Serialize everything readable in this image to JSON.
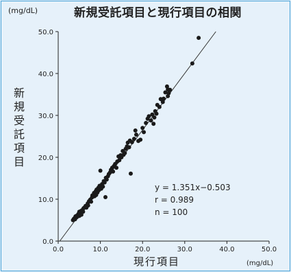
{
  "colors": {
    "background": "#e6f1fa",
    "frame": "#4aa3d8",
    "points": "#1a1a1a",
    "line": "#333333"
  },
  "chart_data": {
    "type": "scatter",
    "title": "新規受託項目と現行項目の相関",
    "xlabel": "現行項目",
    "ylabel": "新規受託項目",
    "x_unit": "(mg/dL)",
    "y_unit": "(mg/dL)",
    "xlim": [
      0,
      50
    ],
    "ylim": [
      0,
      50
    ],
    "x_ticks": [
      "0.0",
      "10.0",
      "20.0",
      "30.0",
      "40.0",
      "50.0"
    ],
    "y_ticks": [
      "0.0",
      "10.0",
      "20.0",
      "30.0",
      "40.0",
      "50.0"
    ],
    "grid": false,
    "regression": {
      "equation": "y = 1.351x−0.503",
      "slope": 1.351,
      "intercept": -0.503
    },
    "stats": [
      "y = 1.351x−0.503",
      "r = 0.989",
      "n = 100"
    ],
    "points": [
      [
        3.5,
        5.0
      ],
      [
        3.7,
        5.3
      ],
      [
        3.9,
        5.5
      ],
      [
        4.0,
        5.2
      ],
      [
        4.1,
        5.9
      ],
      [
        4.3,
        6.0
      ],
      [
        4.4,
        5.7
      ],
      [
        4.6,
        6.2
      ],
      [
        4.8,
        6.5
      ],
      [
        5.0,
        6.0
      ],
      [
        5.0,
        7.0
      ],
      [
        5.2,
        6.6
      ],
      [
        5.4,
        7.2
      ],
      [
        5.5,
        6.3
      ],
      [
        5.7,
        7.4
      ],
      [
        5.9,
        7.0
      ],
      [
        6.0,
        7.8
      ],
      [
        6.2,
        8.0
      ],
      [
        6.5,
        8.4
      ],
      [
        6.7,
        8.0
      ],
      [
        7.0,
        9.0
      ],
      [
        7.1,
        8.5
      ],
      [
        7.3,
        9.5
      ],
      [
        7.6,
        9.9
      ],
      [
        7.8,
        9.4
      ],
      [
        8.0,
        10.4
      ],
      [
        8.1,
        10.9
      ],
      [
        8.3,
        11.0
      ],
      [
        8.5,
        11.5
      ],
      [
        8.6,
        10.7
      ],
      [
        8.9,
        11.9
      ],
      [
        9.0,
        11.0
      ],
      [
        9.1,
        12.3
      ],
      [
        9.3,
        11.6
      ],
      [
        9.5,
        12.7
      ],
      [
        9.6,
        12.1
      ],
      [
        9.8,
        13.2
      ],
      [
        10.0,
        13.0
      ],
      [
        10.0,
        16.8
      ],
      [
        10.2,
        12.5
      ],
      [
        10.4,
        13.6
      ],
      [
        10.6,
        13.0
      ],
      [
        10.8,
        14.3
      ],
      [
        11.0,
        14.0
      ],
      [
        11.2,
        10.5
      ],
      [
        11.3,
        15.1
      ],
      [
        11.5,
        14.7
      ],
      [
        11.8,
        15.5
      ],
      [
        12.0,
        16.0
      ],
      [
        12.3,
        16.4
      ],
      [
        12.5,
        17.0
      ],
      [
        12.8,
        17.5
      ],
      [
        13.0,
        16.6
      ],
      [
        13.2,
        17.9
      ],
      [
        13.5,
        18.4
      ],
      [
        13.8,
        17.5
      ],
      [
        14.0,
        19.0
      ],
      [
        14.3,
        20.2
      ],
      [
        14.5,
        19.3
      ],
      [
        14.8,
        20.5
      ],
      [
        15.0,
        20.0
      ],
      [
        15.3,
        21.5
      ],
      [
        15.5,
        20.6
      ],
      [
        15.8,
        21.0
      ],
      [
        16.0,
        22.0
      ],
      [
        16.3,
        22.6
      ],
      [
        16.5,
        23.5
      ],
      [
        16.8,
        22.4
      ],
      [
        17.0,
        24.0
      ],
      [
        17.2,
        16.1
      ],
      [
        17.5,
        23.6
      ],
      [
        18.0,
        24.4
      ],
      [
        18.3,
        26.4
      ],
      [
        18.5,
        25.4
      ],
      [
        19.0,
        23.9
      ],
      [
        19.5,
        24.2
      ],
      [
        20.0,
        27.0
      ],
      [
        20.3,
        26.0
      ],
      [
        20.8,
        28.2
      ],
      [
        21.2,
        29.2
      ],
      [
        21.5,
        29.8
      ],
      [
        22.0,
        28.8
      ],
      [
        22.3,
        30.2
      ],
      [
        22.6,
        28.0
      ],
      [
        23.0,
        31.0
      ],
      [
        23.3,
        30.4
      ],
      [
        23.5,
        32.5
      ],
      [
        24.0,
        32.0
      ],
      [
        24.3,
        33.9
      ],
      [
        24.8,
        33.2
      ],
      [
        25.0,
        34.0
      ],
      [
        25.4,
        35.5
      ],
      [
        25.8,
        36.9
      ],
      [
        26.0,
        34.6
      ],
      [
        26.2,
        35.3
      ],
      [
        26.5,
        36.1
      ],
      [
        26.0,
        36.2
      ],
      [
        31.8,
        42.4
      ],
      [
        33.3,
        48.5
      ],
      [
        22.8,
        29.5
      ]
    ]
  }
}
